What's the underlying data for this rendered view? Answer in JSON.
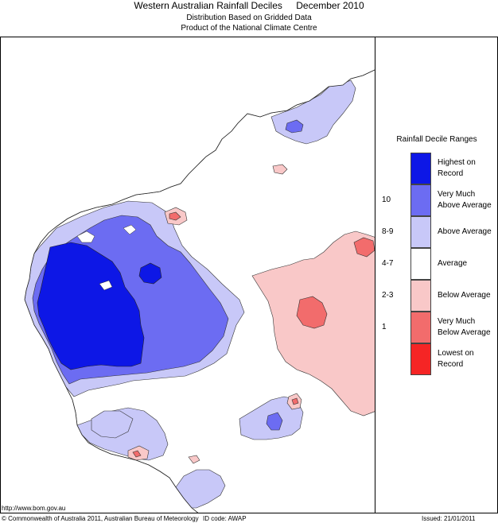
{
  "header": {
    "title": "Western Australian Rainfall Deciles",
    "period": "December 2010",
    "subtitle1": "Distribution Based on Gridded Data",
    "subtitle2": "Product of the National Climate Centre"
  },
  "legend": {
    "title": "Rainfall Decile Ranges",
    "entries": [
      {
        "decile": "",
        "label": "Highest on Record",
        "color": "#0d17e6"
      },
      {
        "decile": "10",
        "label": "Very Much Above Average",
        "color": "#6c6cf2"
      },
      {
        "decile": "8-9",
        "label": "Above Average",
        "color": "#c8c8f8"
      },
      {
        "decile": "4-7",
        "label": "Average",
        "color": "#ffffff"
      },
      {
        "decile": "2-3",
        "label": "Below Average",
        "color": "#f9c8c8"
      },
      {
        "decile": "1",
        "label": "Very Much Below Average",
        "color": "#f26c6c"
      },
      {
        "decile": "",
        "label": "Lowest on Record",
        "color": "#f52525"
      }
    ]
  },
  "footer": {
    "url": "http://www.bom.gov.au",
    "copyright": "© Commonwealth of Australia 2011, Australian Bureau of Meteorology",
    "id_code": "ID code: AWAP",
    "issued": "Issued: 21/01/2011"
  }
}
